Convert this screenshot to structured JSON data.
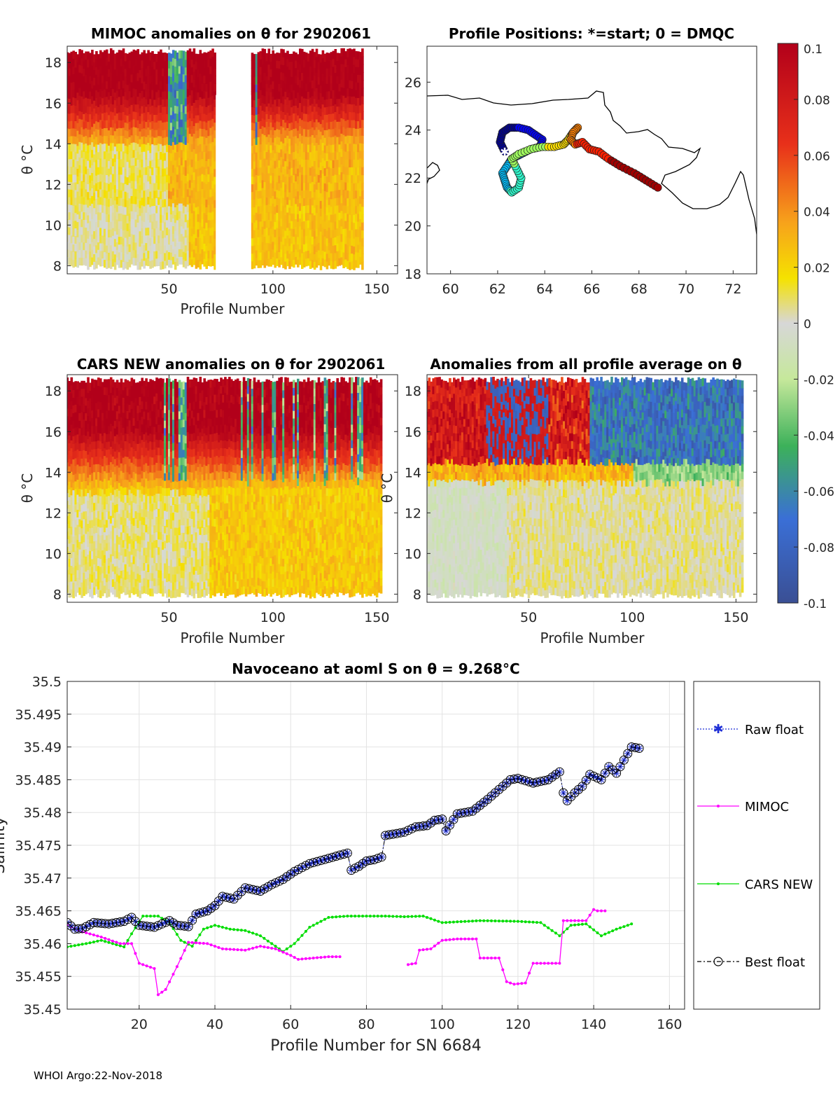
{
  "figure": {
    "footer": "WHOI Argo:22-Nov-2018"
  },
  "chart_data": [
    {
      "type": "heatmap",
      "title": "MIMOC anomalies on θ  for 2902061",
      "xlabel": "Profile Number",
      "ylabel": "θ °C",
      "xlim": [
        1,
        160
      ],
      "ylim": [
        7.6,
        18.8
      ],
      "xticks": [
        50,
        100,
        150
      ],
      "yticks": [
        8,
        10,
        12,
        14,
        16,
        18
      ],
      "last_profile": 143,
      "gap": [
        73,
        89
      ]
    },
    {
      "type": "scatter",
      "title": "Profile Positions: *=start; 0 = DMQC",
      "xlabel": "",
      "ylabel": "",
      "xlim": [
        59,
        73
      ],
      "ylim": [
        18,
        27.5
      ],
      "xticks": [
        60,
        62,
        64,
        66,
        68,
        70,
        72
      ],
      "yticks": [
        18,
        20,
        22,
        24,
        26
      ],
      "start": [
        62.3,
        23.1
      ],
      "path": [
        [
          62.3,
          23.1
        ],
        [
          62.1,
          23.5
        ],
        [
          62.2,
          23.9
        ],
        [
          62.5,
          24.1
        ],
        [
          62.9,
          24.1
        ],
        [
          63.3,
          24.0
        ],
        [
          63.6,
          23.8
        ],
        [
          63.9,
          23.6
        ],
        [
          63.8,
          23.3
        ],
        [
          63.4,
          23.2
        ],
        [
          63.0,
          23.0
        ],
        [
          62.6,
          22.8
        ],
        [
          62.4,
          22.5
        ],
        [
          62.2,
          22.2
        ],
        [
          62.3,
          21.9
        ],
        [
          62.4,
          21.6
        ],
        [
          62.6,
          21.4
        ],
        [
          62.9,
          21.6
        ],
        [
          63.0,
          22.0
        ],
        [
          62.8,
          22.4
        ],
        [
          62.6,
          22.8
        ],
        [
          62.9,
          23.0
        ],
        [
          63.4,
          23.2
        ],
        [
          63.9,
          23.3
        ],
        [
          64.4,
          23.3
        ],
        [
          64.8,
          23.4
        ],
        [
          65.0,
          23.6
        ],
        [
          65.2,
          23.9
        ],
        [
          65.4,
          24.1
        ],
        [
          65.2,
          23.9
        ],
        [
          65.1,
          23.6
        ],
        [
          65.3,
          23.4
        ],
        [
          65.6,
          23.5
        ],
        [
          65.9,
          23.2
        ],
        [
          66.3,
          23.1
        ],
        [
          66.7,
          22.8
        ],
        [
          67.2,
          22.5
        ],
        [
          67.8,
          22.2
        ],
        [
          68.3,
          21.9
        ],
        [
          68.8,
          21.6
        ]
      ],
      "colorbar": {
        "ticks": [
          0.1,
          0.08,
          0.06,
          0.04,
          0.02,
          0,
          -0.02,
          -0.04,
          -0.06,
          -0.08,
          -0.1
        ],
        "tick_labels": [
          "0.1",
          "0.08",
          "0.06",
          "0.04",
          "0.02",
          "0",
          "-0.02",
          "-0.04",
          "-0.06",
          "-0.08",
          "-0.1"
        ],
        "range": [
          -0.1,
          0.1
        ]
      }
    },
    {
      "type": "heatmap",
      "title": "CARS NEW anomalies on θ for 2902061",
      "xlabel": "Profile Number",
      "ylabel": "θ °C",
      "xlim": [
        1,
        160
      ],
      "ylim": [
        7.6,
        18.8
      ],
      "xticks": [
        50,
        100,
        150
      ],
      "yticks": [
        8,
        10,
        12,
        14,
        16,
        18
      ],
      "last_profile": 152
    },
    {
      "type": "heatmap",
      "title": "Anomalies from all profile average on θ",
      "xlabel": "Profile Number",
      "ylabel": "θ °C",
      "xlim": [
        1,
        160
      ],
      "ylim": [
        7.6,
        18.8
      ],
      "xticks": [
        50,
        100,
        150
      ],
      "yticks": [
        8,
        10,
        12,
        14,
        16,
        18
      ],
      "last_profile": 153
    },
    {
      "type": "line",
      "title": "Navoceano at aoml S on θ = 9.268°C",
      "xlabel": "Profile Number for SN 6684",
      "ylabel": "Salinity",
      "xlim": [
        1,
        164
      ],
      "ylim": [
        35.45,
        35.5
      ],
      "xticks": [
        20,
        40,
        60,
        80,
        100,
        120,
        140,
        160
      ],
      "yticks": [
        35.45,
        35.455,
        35.46,
        35.465,
        35.47,
        35.475,
        35.48,
        35.485,
        35.49,
        35.495,
        35.5
      ],
      "ytick_labels": [
        "35.45",
        "35.455",
        "35.46",
        "35.465",
        "35.47",
        "35.475",
        "35.48",
        "35.485",
        "35.49",
        "35.495",
        "35.5"
      ],
      "grid": true,
      "legend": [
        "Raw float",
        "MIMOC",
        "CARS NEW",
        "Best float"
      ],
      "legend_position": "outside-right",
      "series": [
        {
          "name": "Raw float",
          "anchors": [
            [
              1,
              35.4632
            ],
            [
              3,
              35.4622
            ],
            [
              5,
              35.4623
            ],
            [
              8,
              35.4632
            ],
            [
              12,
              35.463
            ],
            [
              16,
              35.4634
            ],
            [
              18,
              35.464
            ],
            [
              20,
              35.4628
            ],
            [
              24,
              35.4625
            ],
            [
              28,
              35.4635
            ],
            [
              30,
              35.4628
            ],
            [
              33,
              35.4626
            ],
            [
              35,
              35.4645
            ],
            [
              38,
              35.465
            ],
            [
              40,
              35.4658
            ],
            [
              42,
              35.4672
            ],
            [
              45,
              35.4668
            ],
            [
              48,
              35.4685
            ],
            [
              52,
              35.468
            ],
            [
              55,
              35.469
            ],
            [
              58,
              35.4698
            ],
            [
              61,
              35.471
            ],
            [
              65,
              35.4722
            ],
            [
              70,
              35.473
            ],
            [
              73,
              35.4735
            ],
            [
              75,
              35.4738
            ],
            [
              76,
              35.4712
            ],
            [
              78,
              35.4718
            ],
            [
              80,
              35.4726
            ],
            [
              82,
              35.4728
            ],
            [
              84,
              35.4732
            ],
            [
              85,
              35.4765
            ],
            [
              88,
              35.4768
            ],
            [
              90,
              35.477
            ],
            [
              93,
              35.4778
            ],
            [
              96,
              35.478
            ],
            [
              98,
              35.4788
            ],
            [
              100,
              35.479
            ],
            [
              101,
              35.4772
            ],
            [
              104,
              35.4798
            ],
            [
              108,
              35.4802
            ],
            [
              112,
              35.482
            ],
            [
              115,
              35.4835
            ],
            [
              118,
              35.485
            ],
            [
              120,
              35.4852
            ],
            [
              124,
              35.4845
            ],
            [
              128,
              35.485
            ],
            [
              131,
              35.4862
            ],
            [
              132,
              35.483
            ],
            [
              133,
              35.4818
            ],
            [
              135,
              35.483
            ],
            [
              137,
              35.484
            ],
            [
              139,
              35.4858
            ],
            [
              142,
              35.485
            ],
            [
              144,
              35.487
            ],
            [
              146,
              35.486
            ],
            [
              148,
              35.488
            ],
            [
              150,
              35.49
            ],
            [
              152,
              35.4898
            ]
          ]
        },
        {
          "name": "MIMOC",
          "segments": [
            [
              [
                1,
                35.4628
              ],
              [
                5,
                35.4618
              ],
              [
                10,
                35.461
              ],
              [
                15,
                35.46
              ],
              [
                18,
                35.46
              ],
              [
                20,
                35.457
              ],
              [
                24,
                35.4562
              ],
              [
                25,
                35.4522
              ],
              [
                27,
                35.453
              ],
              [
                30,
                35.4565
              ],
              [
                33,
                35.4602
              ],
              [
                38,
                35.46
              ],
              [
                42,
                35.4592
              ],
              [
                48,
                35.459
              ],
              [
                52,
                35.4596
              ],
              [
                56,
                35.4592
              ],
              [
                60,
                35.4582
              ],
              [
                62,
                35.4576
              ],
              [
                66,
                35.4578
              ],
              [
                70,
                35.458
              ],
              [
                73,
                35.458
              ]
            ],
            [
              [
                91,
                35.4568
              ],
              [
                93,
                35.457
              ],
              [
                94,
                35.459
              ],
              [
                97,
                35.4592
              ],
              [
                100,
                35.4605
              ],
              [
                104,
                35.4607
              ],
              [
                107,
                35.4607
              ],
              [
                109,
                35.4607
              ],
              [
                110,
                35.4578
              ],
              [
                115,
                35.4578
              ],
              [
                117,
                35.4542
              ],
              [
                119,
                35.4538
              ],
              [
                122,
                35.454
              ],
              [
                124,
                35.457
              ],
              [
                128,
                35.457
              ],
              [
                131,
                35.457
              ],
              [
                132,
                35.4635
              ],
              [
                138,
                35.4635
              ],
              [
                140,
                35.4652
              ],
              [
                141,
                35.465
              ],
              [
                143,
                35.465
              ]
            ]
          ]
        },
        {
          "name": "CARS NEW",
          "anchors": [
            [
              1,
              35.4595
            ],
            [
              6,
              35.46
            ],
            [
              10,
              35.4605
            ],
            [
              13,
              35.46
            ],
            [
              16,
              35.4595
            ],
            [
              18,
              35.4615
            ],
            [
              21,
              35.4642
            ],
            [
              25,
              35.4642
            ],
            [
              28,
              35.4632
            ],
            [
              31,
              35.4605
            ],
            [
              34,
              35.4596
            ],
            [
              37,
              35.4622
            ],
            [
              40,
              35.4628
            ],
            [
              44,
              35.4622
            ],
            [
              48,
              35.462
            ],
            [
              52,
              35.4612
            ],
            [
              55,
              35.46
            ],
            [
              58,
              35.4588
            ],
            [
              61,
              35.46
            ],
            [
              65,
              35.4625
            ],
            [
              70,
              35.464
            ],
            [
              75,
              35.4642
            ],
            [
              80,
              35.4642
            ],
            [
              85,
              35.4642
            ],
            [
              90,
              35.4641
            ],
            [
              95,
              35.4642
            ],
            [
              100,
              35.4632
            ],
            [
              110,
              35.4635
            ],
            [
              120,
              35.4634
            ],
            [
              126,
              35.4632
            ],
            [
              131,
              35.4612
            ],
            [
              134,
              35.4628
            ],
            [
              138,
              35.463
            ],
            [
              142,
              35.4612
            ],
            [
              146,
              35.4622
            ],
            [
              150,
              35.463
            ]
          ]
        },
        {
          "name": "Best float",
          "anchors": [
            [
              1,
              35.4632
            ],
            [
              3,
              35.4622
            ],
            [
              5,
              35.4623
            ],
            [
              8,
              35.4632
            ],
            [
              12,
              35.463
            ],
            [
              16,
              35.4634
            ],
            [
              18,
              35.464
            ],
            [
              20,
              35.4628
            ],
            [
              24,
              35.4625
            ],
            [
              28,
              35.4635
            ],
            [
              30,
              35.4628
            ],
            [
              33,
              35.4626
            ],
            [
              35,
              35.4645
            ],
            [
              38,
              35.465
            ],
            [
              40,
              35.4658
            ],
            [
              42,
              35.4672
            ],
            [
              45,
              35.4668
            ],
            [
              48,
              35.4685
            ],
            [
              52,
              35.468
            ],
            [
              55,
              35.469
            ],
            [
              58,
              35.4698
            ],
            [
              61,
              35.471
            ],
            [
              65,
              35.4722
            ],
            [
              70,
              35.473
            ],
            [
              73,
              35.4735
            ],
            [
              75,
              35.4738
            ],
            [
              76,
              35.4712
            ],
            [
              78,
              35.4718
            ],
            [
              80,
              35.4726
            ],
            [
              82,
              35.4728
            ],
            [
              84,
              35.4732
            ],
            [
              85,
              35.4765
            ],
            [
              88,
              35.4768
            ],
            [
              90,
              35.477
            ],
            [
              93,
              35.4778
            ],
            [
              96,
              35.478
            ],
            [
              98,
              35.4788
            ],
            [
              100,
              35.479
            ],
            [
              101,
              35.4772
            ],
            [
              104,
              35.4798
            ],
            [
              108,
              35.4802
            ],
            [
              112,
              35.482
            ],
            [
              115,
              35.4835
            ],
            [
              118,
              35.485
            ],
            [
              120,
              35.4852
            ],
            [
              124,
              35.4845
            ],
            [
              128,
              35.485
            ],
            [
              131,
              35.4862
            ],
            [
              132,
              35.483
            ],
            [
              133,
              35.4818
            ],
            [
              135,
              35.483
            ],
            [
              137,
              35.484
            ],
            [
              139,
              35.4858
            ],
            [
              142,
              35.485
            ],
            [
              144,
              35.487
            ],
            [
              146,
              35.486
            ],
            [
              148,
              35.488
            ],
            [
              150,
              35.49
            ],
            [
              152,
              35.4898
            ]
          ]
        }
      ]
    }
  ]
}
